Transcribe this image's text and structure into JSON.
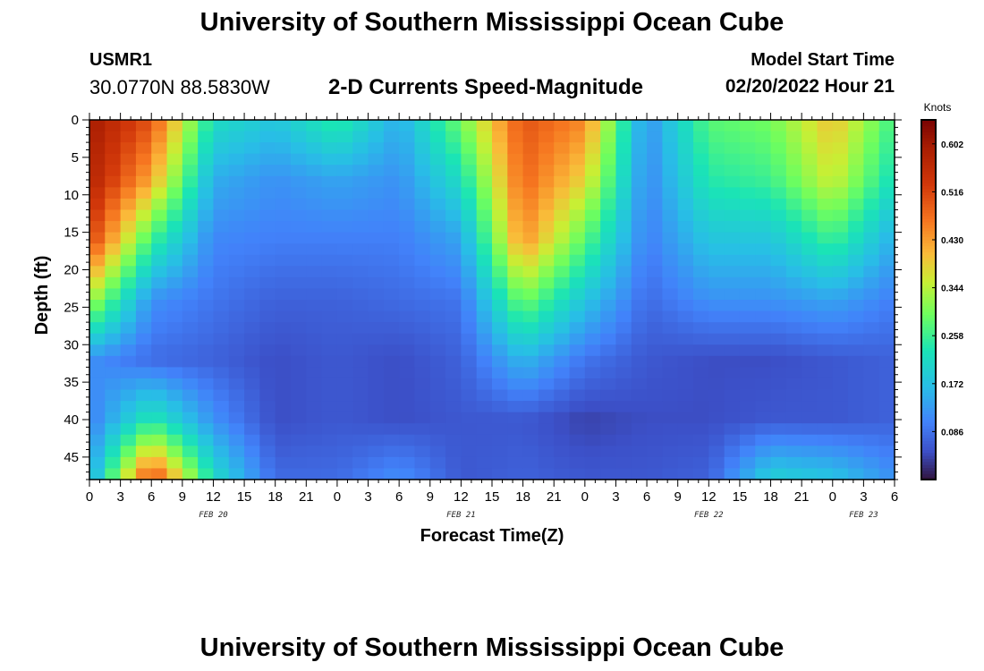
{
  "header": {
    "title": "University of Southern Mississippi Ocean Cube",
    "station_id": "USMR1",
    "coords": "30.0770N  88.5830W",
    "subtitle": "2-D Currents Speed-Magnitude",
    "start_label": "Model Start Time",
    "start_value": "02/20/2022 Hour 21"
  },
  "footer": {
    "title": "University of Southern Mississippi Ocean Cube"
  },
  "chart_data": {
    "type": "heatmap",
    "title": "2-D Currents Speed-Magnitude",
    "xlabel": "Forecast Time(Z)",
    "ylabel": "Depth (ft)",
    "x_tick_labels": [
      "0",
      "3",
      "6",
      "9",
      "12",
      "15",
      "18",
      "21",
      "0",
      "3",
      "6",
      "9",
      "12",
      "15",
      "18",
      "21",
      "0",
      "3",
      "6",
      "9",
      "12",
      "15",
      "18",
      "21",
      "0",
      "3",
      "6"
    ],
    "x_range_hours": [
      0,
      78
    ],
    "day_labels": [
      {
        "text": "FEB 20",
        "hour": 12
      },
      {
        "text": "FEB 21",
        "hour": 36
      },
      {
        "text": "FEB 22",
        "hour": 60
      },
      {
        "text": "FEB 23",
        "hour": 75
      }
    ],
    "y_tick_labels": [
      "0",
      "5",
      "10",
      "15",
      "20",
      "25",
      "30",
      "35",
      "40",
      "45"
    ],
    "y_range": [
      0,
      48
    ],
    "y_inverted": true,
    "colorbar": {
      "unit": "Knots",
      "range": [
        0.0,
        0.645
      ],
      "tick_labels": [
        "0.602",
        "0.516",
        "0.430",
        "0.344",
        "0.258",
        "0.172",
        "0.086"
      ],
      "tick_values": [
        0.602,
        0.516,
        0.43,
        0.344,
        0.258,
        0.172,
        0.086
      ],
      "colormap": "turbo"
    },
    "grid_hours": [
      0,
      6,
      12,
      18,
      24,
      30,
      36,
      42,
      48,
      54,
      60,
      66,
      72,
      78
    ],
    "grid_depths_ft": [
      0,
      8,
      16,
      24,
      32,
      40,
      48
    ],
    "speed_grid_knots": [
      [
        0.6,
        0.5,
        0.22,
        0.18,
        0.25,
        0.15,
        0.3,
        0.5,
        0.45,
        0.12,
        0.28,
        0.3,
        0.4,
        0.26
      ],
      [
        0.58,
        0.42,
        0.15,
        0.12,
        0.14,
        0.12,
        0.22,
        0.48,
        0.38,
        0.11,
        0.24,
        0.26,
        0.36,
        0.22
      ],
      [
        0.52,
        0.26,
        0.11,
        0.1,
        0.1,
        0.1,
        0.14,
        0.44,
        0.28,
        0.1,
        0.18,
        0.18,
        0.26,
        0.15
      ],
      [
        0.34,
        0.12,
        0.09,
        0.07,
        0.07,
        0.08,
        0.09,
        0.3,
        0.18,
        0.08,
        0.12,
        0.12,
        0.14,
        0.1
      ],
      [
        0.12,
        0.08,
        0.07,
        0.05,
        0.06,
        0.05,
        0.07,
        0.16,
        0.09,
        0.06,
        0.05,
        0.05,
        0.06,
        0.07
      ],
      [
        0.1,
        0.24,
        0.12,
        0.05,
        0.06,
        0.05,
        0.06,
        0.06,
        0.04,
        0.05,
        0.05,
        0.06,
        0.06,
        0.07
      ],
      [
        0.14,
        0.52,
        0.22,
        0.08,
        0.08,
        0.12,
        0.06,
        0.07,
        0.06,
        0.06,
        0.07,
        0.2,
        0.18,
        0.12
      ]
    ]
  }
}
